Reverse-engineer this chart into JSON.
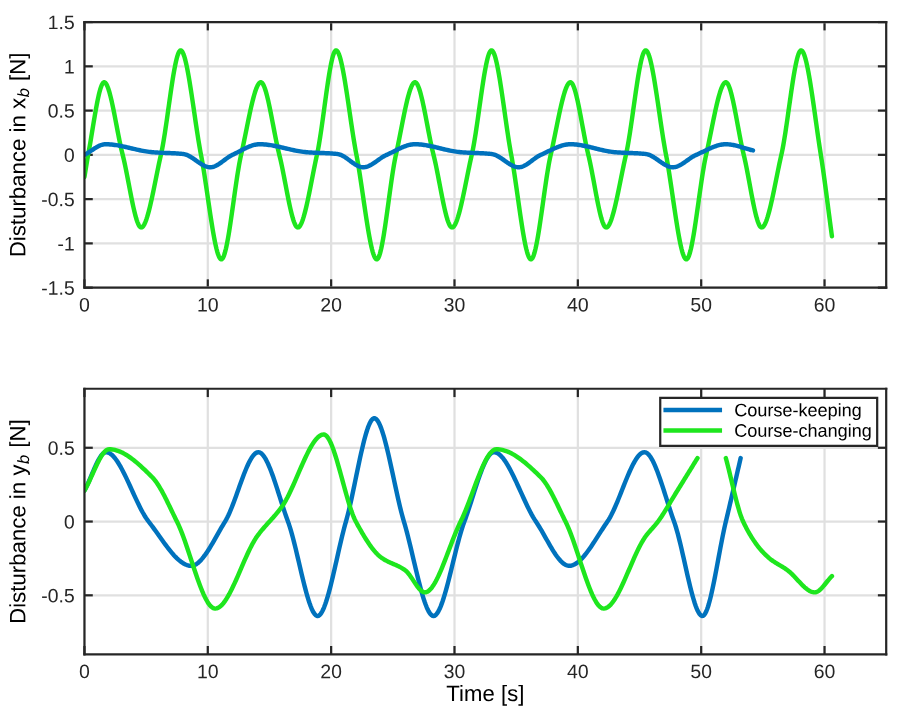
{
  "chart_data": [
    {
      "type": "line",
      "ylabel": "Disturbance in x$_{b}$ [N]",
      "xlim": [
        0,
        65
      ],
      "xticks": [
        0,
        10,
        20,
        30,
        40,
        50,
        60
      ],
      "ylim": [
        -1.5,
        1.5
      ],
      "yticks": [
        -1.5,
        -1,
        -0.5,
        0,
        0.5,
        1,
        1.5
      ],
      "grid": true,
      "series": [
        {
          "color": "#1ee61e",
          "x": [
            0,
            0.3,
            1.6,
            3.1,
            4.6,
            6.2,
            7.8,
            9.45,
            11.1,
            12.7,
            14.3,
            15.8,
            17.3,
            18.85,
            20.4,
            22.05,
            23.7,
            25.25,
            26.8,
            28.3,
            29.8,
            31.4,
            33.0,
            34.6,
            36.2,
            37.8,
            39.4,
            40.85,
            42.3,
            43.9,
            45.5,
            47.15,
            48.8,
            50.4,
            52.0,
            53.45,
            54.9,
            56.5,
            58.1,
            59.7,
            60.6
          ],
          "values": [
            -0.25,
            0,
            0.82,
            0,
            -0.82,
            0,
            1.18,
            0,
            -1.18,
            0,
            0.82,
            0,
            -0.82,
            0,
            1.18,
            0,
            -1.18,
            0,
            0.82,
            0,
            -0.82,
            0,
            1.18,
            0,
            -1.18,
            0,
            0.82,
            0,
            -0.82,
            0,
            1.18,
            0,
            -1.18,
            0,
            0.82,
            0,
            -0.82,
            0,
            1.18,
            0,
            -0.92
          ]
        },
        {
          "color": "#0072bd",
          "x": [
            0,
            1.7,
            5.5,
            8.0,
            10.2,
            12.0,
            14.2,
            18.0,
            20.5,
            22.6,
            24.5,
            26.8,
            30.5,
            33.0,
            35.2,
            37.0,
            39.4,
            43.0,
            45.5,
            47.7,
            49.6,
            52.0,
            54.2
          ],
          "values": [
            0,
            0.12,
            0.03,
            0.01,
            -0.14,
            0,
            0.12,
            0.03,
            0.01,
            -0.14,
            0,
            0.12,
            0.03,
            0.01,
            -0.14,
            0,
            0.12,
            0.03,
            0.01,
            -0.14,
            0,
            0.12,
            0.05
          ]
        }
      ]
    },
    {
      "type": "line",
      "xlabel": "Time [s]",
      "ylabel": "Disturbance in y$_{b}$ [N]",
      "xlim": [
        0,
        65
      ],
      "xticks": [
        0,
        10,
        20,
        30,
        40,
        50,
        60
      ],
      "ylim": [
        -0.9,
        0.9
      ],
      "yticks": [
        -0.5,
        0,
        0.5
      ],
      "grid": true,
      "legend": "top right",
      "series": [
        {
          "name": "Course-keeping",
          "color": "#0072bd",
          "x": [
            0,
            1.75,
            5.2,
            8.65,
            11.4,
            14.1,
            16.5,
            18.9,
            21.2,
            23.5,
            25.9,
            28.3,
            30.8,
            33.2,
            36.6,
            39.3,
            42.4,
            45.4,
            47.8,
            50.1,
            52.0,
            53.2
          ],
          "values": [
            0.21,
            0.47,
            0,
            -0.3,
            0,
            0.47,
            0,
            -0.64,
            0,
            0.7,
            0,
            -0.64,
            0,
            0.47,
            0,
            -0.3,
            0,
            0.47,
            0,
            -0.64,
            0,
            0.43
          ]
        },
        {
          "name": "Course-changing",
          "color": "#1ee61e",
          "x": [
            0,
            2.0,
            5.5,
            7.5,
            10.6,
            14.0,
            16.0,
            19.4,
            22.0,
            24.0,
            26.0,
            27.6,
            30.5,
            33.4,
            37.0,
            39.0,
            42.1,
            45.5,
            46.5,
            48.0,
            49.7,
            50.8,
            52.0,
            53.4,
            55.4,
            57.0,
            59.2,
            60.6
          ],
          "values": [
            0.21,
            0.49,
            0.3,
            0,
            -0.59,
            -0.1,
            0.1,
            0.59,
            0,
            -0.24,
            -0.33,
            -0.48,
            0,
            0.49,
            0.3,
            0,
            -0.59,
            -0.1,
            0,
            0.2,
            0.43,
            null,
            0.43,
            0,
            -0.24,
            -0.33,
            -0.48,
            -0.37
          ]
        }
      ]
    }
  ]
}
